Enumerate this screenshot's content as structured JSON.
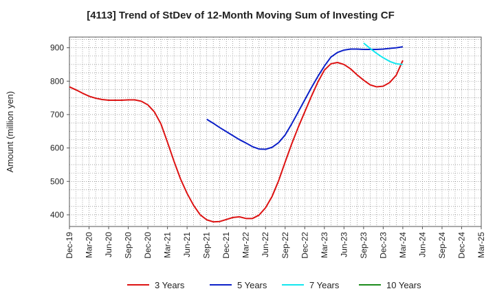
{
  "chart_data": {
    "type": "line",
    "title": "[4113]  Trend of StDev of 12-Month Moving Sum of Investing CF",
    "ylabel": "Amount (million yen)",
    "xlabel": "",
    "ylim": [
      365,
      932
    ],
    "yticks": [
      400,
      500,
      600,
      700,
      800,
      900
    ],
    "x_tick_labels": [
      "Dec-19",
      "Mar-20",
      "Jun-20",
      "Sep-20",
      "Dec-20",
      "Mar-21",
      "Jun-21",
      "Sep-21",
      "Dec-21",
      "Mar-22",
      "Jun-22",
      "Sep-22",
      "Dec-22",
      "Mar-23",
      "Jun-23",
      "Sep-23",
      "Dec-23",
      "Mar-24",
      "Jun-24",
      "Sep-24",
      "Dec-24",
      "Mar-25"
    ],
    "grid": true,
    "legend_position": "bottom",
    "series": [
      {
        "name": "3 Years",
        "color": "#dd1111",
        "points": [
          [
            "Dec-19",
            783
          ],
          [
            "Jan-20",
            774
          ],
          [
            "Feb-20",
            764
          ],
          [
            "Mar-20",
            755
          ],
          [
            "Apr-20",
            749
          ],
          [
            "May-20",
            745
          ],
          [
            "Jun-20",
            743
          ],
          [
            "Jul-20",
            743
          ],
          [
            "Aug-20",
            743
          ],
          [
            "Sep-20",
            744
          ],
          [
            "Oct-20",
            744
          ],
          [
            "Nov-20",
            740
          ],
          [
            "Dec-20",
            729
          ],
          [
            "Jan-21",
            708
          ],
          [
            "Feb-21",
            672
          ],
          [
            "Mar-21",
            617
          ],
          [
            "Apr-21",
            560
          ],
          [
            "May-21",
            507
          ],
          [
            "Jun-21",
            464
          ],
          [
            "Jul-21",
            428
          ],
          [
            "Aug-21",
            400
          ],
          [
            "Sep-21",
            385
          ],
          [
            "Oct-21",
            379
          ],
          [
            "Nov-21",
            380
          ],
          [
            "Dec-21",
            386
          ],
          [
            "Jan-22",
            392
          ],
          [
            "Feb-22",
            394
          ],
          [
            "Mar-22",
            389
          ],
          [
            "Apr-22",
            389
          ],
          [
            "May-22",
            399
          ],
          [
            "Jun-22",
            421
          ],
          [
            "Jul-22",
            455
          ],
          [
            "Aug-22",
            502
          ],
          [
            "Sep-22",
            558
          ],
          [
            "Oct-22",
            612
          ],
          [
            "Nov-22",
            662
          ],
          [
            "Dec-22",
            708
          ],
          [
            "Jan-23",
            754
          ],
          [
            "Feb-23",
            797
          ],
          [
            "Mar-23",
            833
          ],
          [
            "Apr-23",
            852
          ],
          [
            "May-23",
            856
          ],
          [
            "Jun-23",
            850
          ],
          [
            "Jul-23",
            837
          ],
          [
            "Aug-23",
            819
          ],
          [
            "Sep-23",
            803
          ],
          [
            "Oct-23",
            789
          ],
          [
            "Nov-23",
            783
          ],
          [
            "Dec-23",
            785
          ],
          [
            "Jan-24",
            796
          ],
          [
            "Feb-24",
            818
          ],
          [
            "Mar-24",
            862
          ]
        ]
      },
      {
        "name": "5 Years",
        "color": "#0b1fc8",
        "points": [
          [
            "Sep-21",
            686
          ],
          [
            "Oct-21",
            674
          ],
          [
            "Nov-21",
            661
          ],
          [
            "Dec-21",
            649
          ],
          [
            "Jan-22",
            637
          ],
          [
            "Feb-22",
            625
          ],
          [
            "Mar-22",
            615
          ],
          [
            "Apr-22",
            604
          ],
          [
            "May-22",
            597
          ],
          [
            "Jun-22",
            596
          ],
          [
            "Jul-22",
            602
          ],
          [
            "Aug-22",
            616
          ],
          [
            "Sep-22",
            639
          ],
          [
            "Oct-22",
            672
          ],
          [
            "Nov-22",
            708
          ],
          [
            "Dec-22",
            744
          ],
          [
            "Jan-23",
            780
          ],
          [
            "Feb-23",
            814
          ],
          [
            "Mar-23",
            845
          ],
          [
            "Apr-23",
            872
          ],
          [
            "May-23",
            886
          ],
          [
            "Jun-23",
            893
          ],
          [
            "Jul-23",
            896
          ],
          [
            "Aug-23",
            896
          ],
          [
            "Sep-23",
            895
          ],
          [
            "Oct-23",
            895
          ],
          [
            "Nov-23",
            895
          ],
          [
            "Dec-23",
            896
          ],
          [
            "Jan-24",
            898
          ],
          [
            "Feb-24",
            900
          ],
          [
            "Mar-24",
            903
          ]
        ]
      },
      {
        "name": "7 Years",
        "color": "#11e6ee",
        "points": [
          [
            "Sep-23",
            914
          ],
          [
            "Oct-23",
            898
          ],
          [
            "Nov-23",
            883
          ],
          [
            "Dec-23",
            870
          ],
          [
            "Jan-24",
            859
          ],
          [
            "Feb-24",
            852
          ],
          [
            "Mar-24",
            850
          ]
        ]
      },
      {
        "name": "10 Years",
        "color": "#1a8a1a",
        "points": []
      }
    ]
  }
}
